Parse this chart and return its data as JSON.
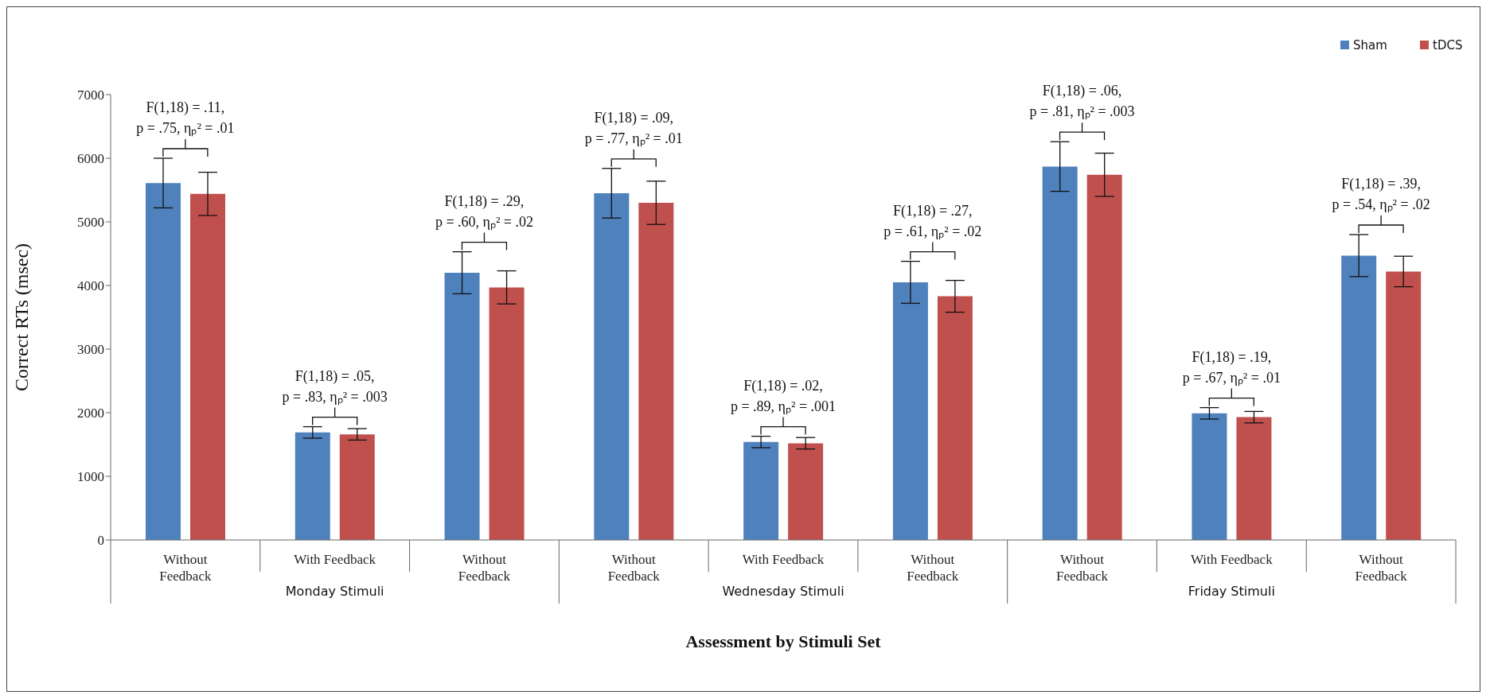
{
  "chart_data": {
    "type": "bar",
    "xlabel": "Assessment by Stimuli Set",
    "ylabel": "Correct RTs (msec)",
    "categories": [
      "Without Feedback",
      "With Feedback",
      "Without Feedback",
      "Without Feedback",
      "With Feedback",
      "Without Feedback",
      "Without Feedback",
      "With Feedback",
      "Without Feedback"
    ],
    "series": [
      {
        "name": "Sham",
        "color": "#4f81bd",
        "values": [
          5610,
          1690,
          4200,
          5450,
          1540,
          4050,
          5870,
          1990,
          4470
        ],
        "errors": [
          390,
          90,
          330,
          390,
          90,
          330,
          390,
          90,
          330
        ]
      },
      {
        "name": "tDCS",
        "color": "#c0504d",
        "values": [
          5440,
          1660,
          3970,
          5300,
          1520,
          3830,
          5740,
          1930,
          4220
        ],
        "errors": [
          340,
          90,
          260,
          340,
          90,
          250,
          340,
          90,
          240
        ]
      }
    ],
    "ylim": [
      0,
      7000
    ],
    "yticks": [
      0,
      1000,
      2000,
      3000,
      4000,
      5000,
      6000,
      7000
    ],
    "legend": "top right",
    "annotations": [
      "F(1,18) = .11,\np = .75, ηₚ² = .01",
      "F(1,18) = .05,\np = .83, ηₚ² = .003",
      "F(1,18) = .29,\np = .60, ηₚ² = .02",
      "F(1,18) = .09,\np = .77, ηₚ² = .01",
      "F(1,18) = .02,\np = .89, ηₚ² = .001",
      "F(1,18) = .27,\np = .61, ηₚ² = .02",
      "F(1,18) = .06,\np = .81, ηₚ² = .003",
      "F(1,18) = .19,\np = .67, ηₚ² = .01",
      "F(1,18) = .39,\np = .54, ηₚ² = .02",
      "Monday Stimuli",
      "Wednesday Stimuli",
      "Friday Stimuli"
    ]
  }
}
